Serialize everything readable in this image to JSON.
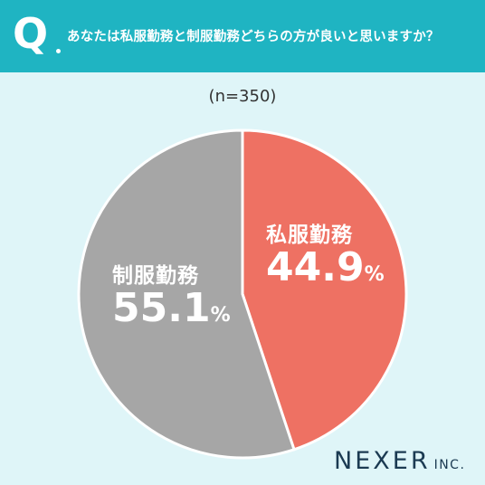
{
  "header": {
    "q_mark": "Q",
    "question": "あなたは私服勤務と制服勤務どちらの方が良いと思いますか？"
  },
  "sample_label": "(n=350)",
  "chart_data": {
    "type": "pie",
    "title": "あなたは私服勤務と制服勤務どちらの方が良いと思いますか？",
    "n": 350,
    "slices": [
      {
        "label": "私服勤務",
        "value": 44.9,
        "display": "44.9",
        "unit": "%",
        "color": "#ee7163"
      },
      {
        "label": "制服勤務",
        "value": 55.1,
        "display": "55.1",
        "unit": "%",
        "color": "#a6a6a6"
      }
    ],
    "start_angle": "12 o'clock",
    "direction": "clockwise",
    "legend": "none (labels inside slices)"
  },
  "logo": {
    "name": "NEXER",
    "suffix": "INC."
  },
  "colors": {
    "header_bg": "#1fb4c2",
    "page_bg": "#dff5f8",
    "slice_border": "#ffffff"
  }
}
